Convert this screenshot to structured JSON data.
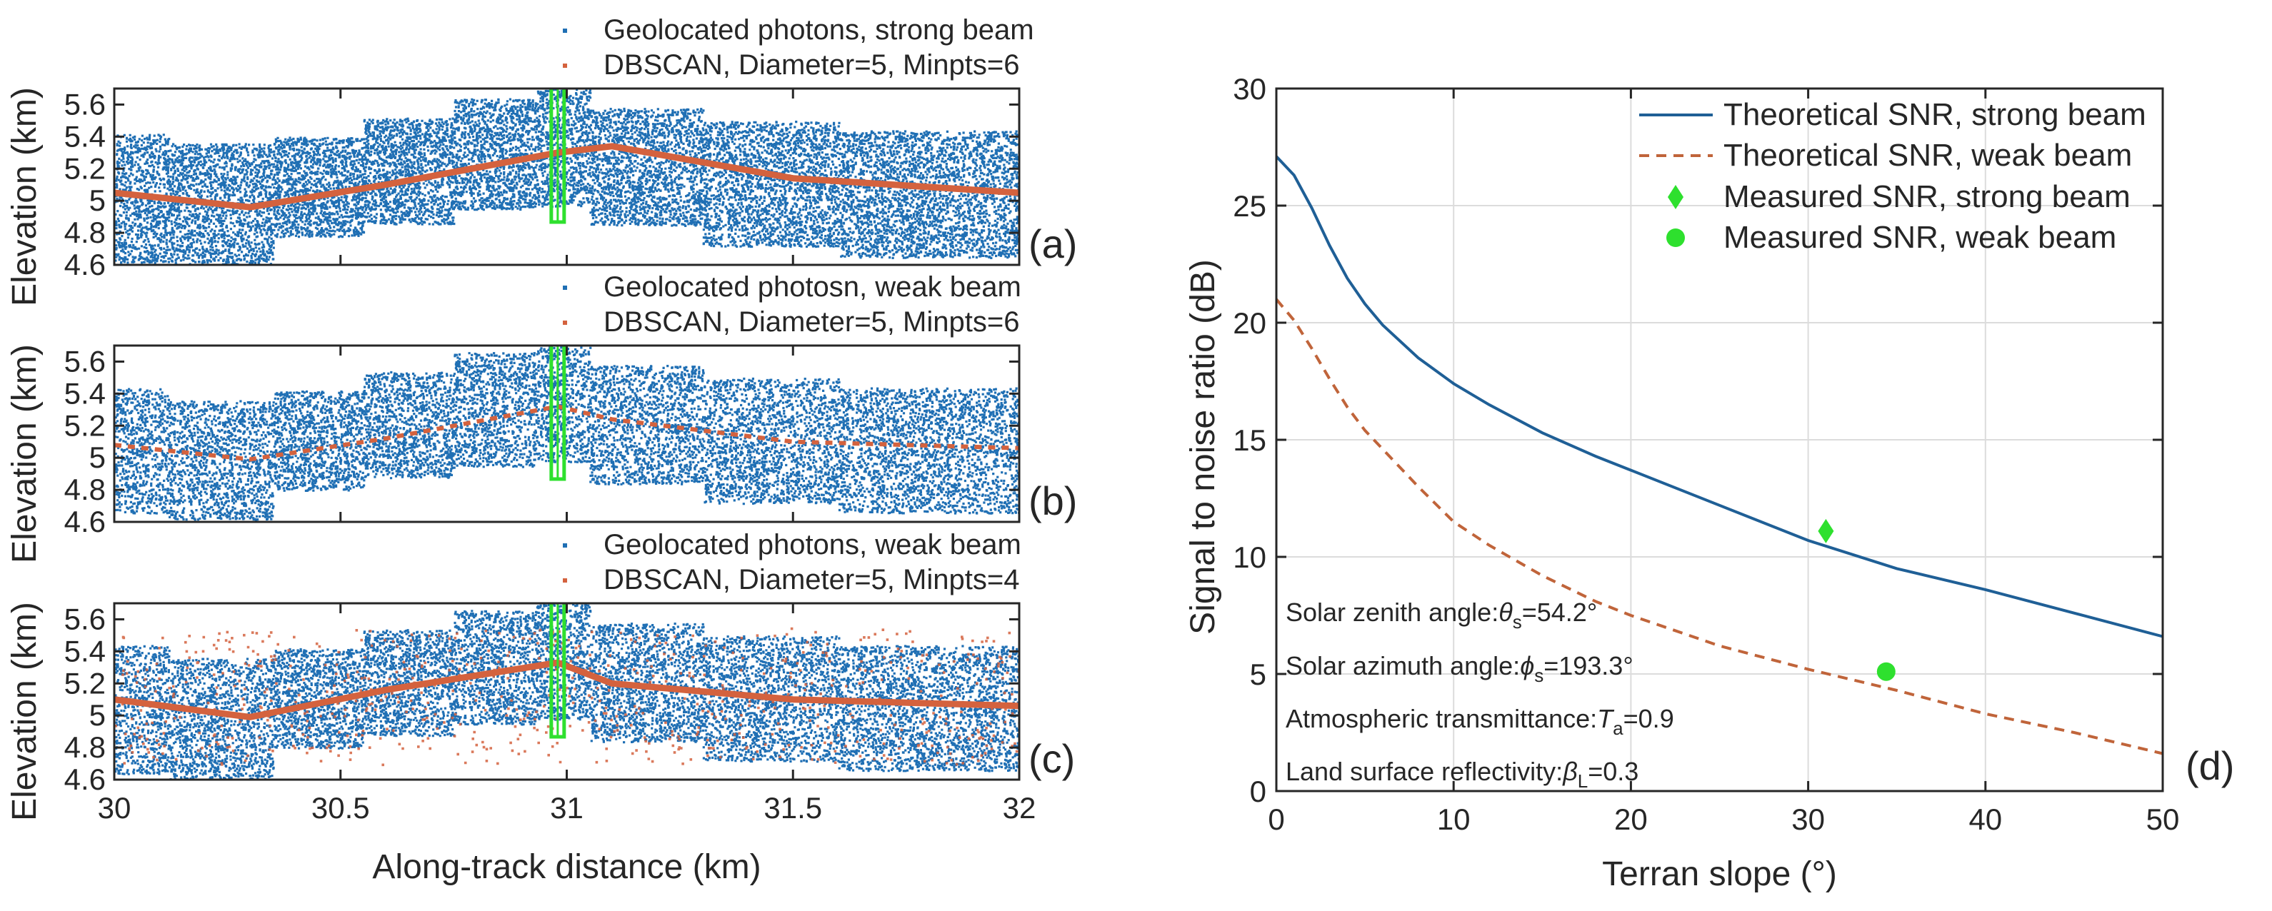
{
  "chart_data": [
    {
      "type": "scatter",
      "panel_label": "(a)",
      "ylabel": "Elevation (km)",
      "xlim": [
        30,
        32
      ],
      "ylim": [
        4.6,
        5.7
      ],
      "yticks": [
        "4.6",
        "4.8",
        "5",
        "5.2",
        "5.4",
        "5.6"
      ],
      "ytick_values": [
        4.6,
        4.8,
        5.0,
        5.2,
        5.4,
        5.6
      ],
      "legend": [
        "Geolocated photons, strong beam",
        "DBSCAN, Diameter=5, Minpts=6"
      ],
      "band_segments": [
        {
          "x": [
            30.0,
            30.12
          ],
          "low": 4.62,
          "high": 5.42
        },
        {
          "x": [
            30.12,
            30.35
          ],
          "low": 4.6,
          "high": 5.36
        },
        {
          "x": [
            30.35,
            30.55
          ],
          "low": 4.78,
          "high": 5.4
        },
        {
          "x": [
            30.55,
            30.75
          ],
          "low": 4.86,
          "high": 5.52
        },
        {
          "x": [
            30.75,
            30.93
          ],
          "low": 4.95,
          "high": 5.64
        },
        {
          "x": [
            30.93,
            31.05
          ],
          "low": 4.97,
          "high": 5.7
        },
        {
          "x": [
            31.05,
            31.3
          ],
          "low": 4.85,
          "high": 5.58
        },
        {
          "x": [
            31.3,
            31.6
          ],
          "low": 4.72,
          "high": 5.5
        },
        {
          "x": [
            31.6,
            32.0
          ],
          "low": 4.65,
          "high": 5.44
        }
      ],
      "cluster_line": {
        "x": [
          30.0,
          30.3,
          30.6,
          30.98,
          31.1,
          31.5,
          32.0
        ],
        "y": [
          5.05,
          4.96,
          5.1,
          5.3,
          5.34,
          5.14,
          5.05
        ]
      },
      "vertical_marker_x": 30.98
    },
    {
      "type": "scatter",
      "panel_label": "(b)",
      "ylabel": "Elevation (km)",
      "xlim": [
        30,
        32
      ],
      "ylim": [
        4.6,
        5.7
      ],
      "yticks": [
        "4.6",
        "4.8",
        "5",
        "5.2",
        "5.4",
        "5.6"
      ],
      "ytick_values": [
        4.6,
        4.8,
        5.0,
        5.2,
        5.4,
        5.6
      ],
      "legend": [
        "Geolocated photosn, weak beam",
        "DBSCAN, Diameter=5, Minpts=6"
      ],
      "band_segments": [
        {
          "x": [
            30.0,
            30.12
          ],
          "low": 4.66,
          "high": 5.44
        },
        {
          "x": [
            30.12,
            30.35
          ],
          "low": 4.62,
          "high": 5.36
        },
        {
          "x": [
            30.35,
            30.55
          ],
          "low": 4.8,
          "high": 5.42
        },
        {
          "x": [
            30.55,
            30.75
          ],
          "low": 4.88,
          "high": 5.54
        },
        {
          "x": [
            30.75,
            30.93
          ],
          "low": 4.95,
          "high": 5.66
        },
        {
          "x": [
            30.93,
            31.05
          ],
          "low": 4.98,
          "high": 5.7
        },
        {
          "x": [
            31.05,
            31.3
          ],
          "low": 4.84,
          "high": 5.58
        },
        {
          "x": [
            31.3,
            31.6
          ],
          "low": 4.72,
          "high": 5.5
        },
        {
          "x": [
            31.6,
            32.0
          ],
          "low": 4.66,
          "high": 5.44
        }
      ],
      "cluster_line": {
        "x": [
          30.0,
          30.3,
          30.6,
          30.98,
          31.1,
          31.5,
          32.0
        ],
        "y": [
          5.08,
          4.99,
          5.12,
          5.32,
          5.24,
          5.1,
          5.06
        ]
      },
      "cluster_dashed": true,
      "vertical_marker_x": 30.98
    },
    {
      "type": "scatter",
      "panel_label": "(c)",
      "xlabel": "Along-track distance (km)",
      "ylabel": "Elevation (km)",
      "xlim": [
        30,
        32
      ],
      "ylim": [
        4.6,
        5.7
      ],
      "xticks": [
        "30",
        "30.5",
        "31",
        "31.5",
        "32"
      ],
      "xtick_values": [
        30,
        30.5,
        31,
        31.5,
        32
      ],
      "yticks": [
        "4.6",
        "4.8",
        "5",
        "5.2",
        "5.4",
        "5.6"
      ],
      "ytick_values": [
        4.6,
        4.8,
        5.0,
        5.2,
        5.4,
        5.6
      ],
      "legend": [
        "Geolocated photons, weak beam",
        "DBSCAN, Diameter=5, Minpts=4"
      ],
      "band_segments": [
        {
          "x": [
            30.0,
            30.12
          ],
          "low": 4.64,
          "high": 5.44
        },
        {
          "x": [
            30.12,
            30.35
          ],
          "low": 4.6,
          "high": 5.36
        },
        {
          "x": [
            30.35,
            30.55
          ],
          "low": 4.8,
          "high": 5.42
        },
        {
          "x": [
            30.55,
            30.75
          ],
          "low": 4.88,
          "high": 5.54
        },
        {
          "x": [
            30.75,
            30.93
          ],
          "low": 4.95,
          "high": 5.66
        },
        {
          "x": [
            30.93,
            31.05
          ],
          "low": 4.98,
          "high": 5.7
        },
        {
          "x": [
            31.05,
            31.3
          ],
          "low": 4.84,
          "high": 5.58
        },
        {
          "x": [
            31.3,
            31.6
          ],
          "low": 4.72,
          "high": 5.5
        },
        {
          "x": [
            31.6,
            32.0
          ],
          "low": 4.66,
          "high": 5.44
        }
      ],
      "cluster_line": {
        "x": [
          30.0,
          30.3,
          30.6,
          30.98,
          31.1,
          31.5,
          32.0
        ],
        "y": [
          5.1,
          4.99,
          5.16,
          5.33,
          5.2,
          5.1,
          5.06
        ]
      },
      "vertical_marker_x": 30.98
    },
    {
      "type": "line",
      "panel_label": "(d)",
      "xlabel": "Terran slope (°)",
      "ylabel": "Signal to noise ratio (dB)",
      "xlim": [
        0,
        50
      ],
      "ylim": [
        0,
        30
      ],
      "xticks": [
        "0",
        "10",
        "20",
        "30",
        "40",
        "50"
      ],
      "xtick_values": [
        0,
        10,
        20,
        30,
        40,
        50
      ],
      "yticks": [
        "0",
        "5",
        "10",
        "15",
        "20",
        "25",
        "30"
      ],
      "ytick_values": [
        0,
        5,
        10,
        15,
        20,
        25,
        30
      ],
      "grid": true,
      "legend_position": "top-right",
      "series": [
        {
          "name": "Theoretical SNR, strong beam",
          "style": "solid",
          "color": "#1f5f96",
          "x": [
            0,
            1,
            2,
            3,
            4,
            5,
            6,
            8,
            10,
            12,
            15,
            18,
            20,
            25,
            30,
            35,
            40,
            45,
            50
          ],
          "y": [
            27.1,
            26.3,
            24.9,
            23.3,
            21.9,
            20.8,
            19.9,
            18.5,
            17.4,
            16.5,
            15.3,
            14.3,
            13.7,
            12.2,
            10.7,
            9.5,
            8.6,
            7.6,
            6.6
          ]
        },
        {
          "name": "Theoretical SNR, weak beam",
          "style": "dashed",
          "color": "#c0643a",
          "x": [
            0,
            1,
            2,
            3,
            4,
            5,
            6,
            8,
            10,
            12,
            15,
            18,
            20,
            25,
            30,
            35,
            40,
            45,
            50
          ],
          "y": [
            21.0,
            20.1,
            18.9,
            17.6,
            16.4,
            15.4,
            14.6,
            13.0,
            11.5,
            10.5,
            9.2,
            8.1,
            7.5,
            6.2,
            5.2,
            4.3,
            3.3,
            2.5,
            1.6
          ]
        },
        {
          "name": "Measured SNR, strong beam",
          "marker": "diamond",
          "color": "#2ee02e",
          "x": [
            31.0
          ],
          "y": [
            11.1
          ]
        },
        {
          "name": "Measured SNR, weak beam",
          "marker": "circle",
          "color": "#2ee02e",
          "x": [
            34.4
          ],
          "y": [
            5.1
          ]
        }
      ],
      "annotations": [
        {
          "pre": "Solar zenith angle:",
          "sym": "θ",
          "sub": "s",
          "post": "=54.2°"
        },
        {
          "pre": "Solar azimuth angle:",
          "sym": "ϕ",
          "sub": "s",
          "post": "=193.3°"
        },
        {
          "pre": "Atmospheric transmittance:",
          "sym": "T",
          "sub": "a",
          "post": "=0.9"
        },
        {
          "pre": "Land surface reflectivity:",
          "sym": "β",
          "sub": "L",
          "post": "=0.3"
        }
      ]
    }
  ],
  "colors": {
    "photon": "#1f6fb4",
    "cluster": "#d4623e",
    "marker_green": "#2ee02e",
    "strong_line": "#1f5f96",
    "weak_line": "#c0643a",
    "axis": "#262626",
    "grid": "#dcdcdc"
  }
}
